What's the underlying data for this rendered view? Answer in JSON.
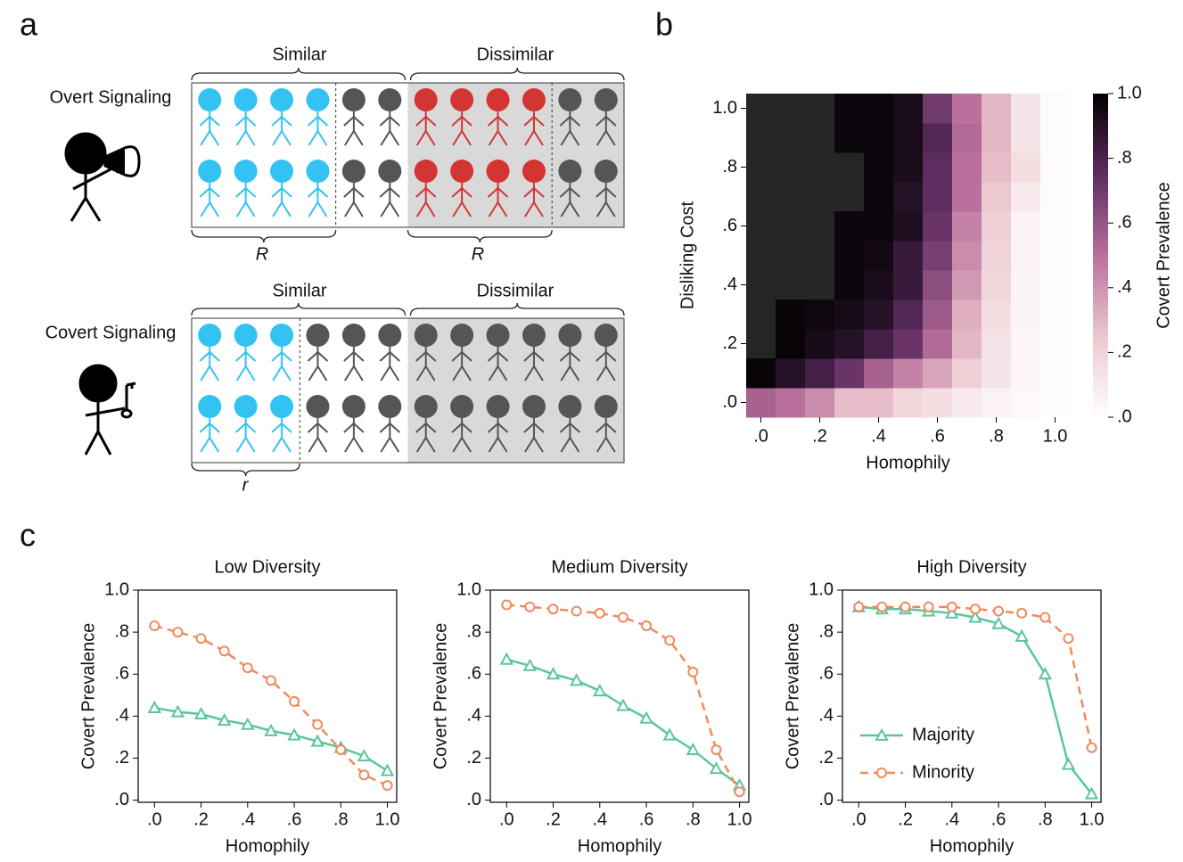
{
  "panel_labels": [
    "a",
    "b",
    "c"
  ],
  "diagram": {
    "overt": {
      "label": "Overt Signaling",
      "similar": "Similar",
      "dissimilar": "Dissimilar",
      "brace_labels": [
        "R",
        "R"
      ]
    },
    "covert": {
      "label": "Covert Signaling",
      "similar": "Similar",
      "dissimilar": "Dissimilar",
      "brace_labels": [
        "r"
      ]
    }
  },
  "chart_data": [
    {
      "type": "heatmap",
      "xlabel": "Homophily",
      "ylabel": "Disliking Cost",
      "x": [
        0,
        0.1,
        0.2,
        0.3,
        0.4,
        0.5,
        0.6,
        0.7,
        0.8,
        0.9,
        1.0
      ],
      "y": [
        0,
        0.1,
        0.2,
        0.3,
        0.4,
        0.5,
        0.6,
        0.7,
        0.8,
        0.9,
        1.0
      ],
      "z": [
        [
          0.55,
          0.5,
          0.42,
          0.28,
          0.28,
          0.18,
          0.15,
          0.1,
          0.06,
          0.03,
          0.01
        ],
        [
          0.98,
          0.9,
          0.82,
          0.72,
          0.55,
          0.45,
          0.35,
          0.22,
          0.12,
          0.04,
          0.01
        ],
        [
          null,
          0.98,
          0.94,
          0.9,
          0.82,
          0.72,
          0.52,
          0.3,
          0.13,
          0.04,
          0.01
        ],
        [
          null,
          0.98,
          0.96,
          0.94,
          0.9,
          0.78,
          0.58,
          0.32,
          0.15,
          0.05,
          0.01
        ],
        [
          null,
          null,
          null,
          0.97,
          0.93,
          0.85,
          0.62,
          0.38,
          0.18,
          0.05,
          0.01
        ],
        [
          null,
          null,
          null,
          0.97,
          0.95,
          0.85,
          0.68,
          0.42,
          0.2,
          0.06,
          0.01
        ],
        [
          null,
          null,
          null,
          0.97,
          0.97,
          0.92,
          0.72,
          0.45,
          0.22,
          0.06,
          0.01
        ],
        [
          null,
          null,
          null,
          null,
          0.97,
          0.9,
          0.75,
          0.5,
          0.25,
          0.1,
          0.02
        ],
        [
          null,
          null,
          null,
          null,
          0.97,
          0.93,
          0.75,
          0.5,
          0.28,
          0.15,
          0.02
        ],
        [
          null,
          null,
          null,
          0.97,
          0.97,
          0.93,
          0.78,
          0.52,
          0.3,
          0.12,
          0.02
        ],
        [
          null,
          null,
          null,
          0.97,
          0.97,
          0.93,
          0.7,
          0.5,
          0.3,
          0.12,
          0.02
        ]
      ],
      "xlim": [
        -0.05,
        1.05
      ],
      "ylim": [
        -0.05,
        1.05
      ],
      "xticks": [
        {
          "value": 0,
          "label": ".0"
        },
        {
          "value": 0.2,
          "label": ".2"
        },
        {
          "value": 0.4,
          "label": ".4"
        },
        {
          "value": 0.6,
          "label": ".6"
        },
        {
          "value": 0.8,
          "label": ".8"
        },
        {
          "value": 1.0,
          "label": "1.0"
        }
      ],
      "yticks": [
        {
          "value": 0,
          "label": ".0"
        },
        {
          "value": 0.2,
          "label": ".2"
        },
        {
          "value": 0.4,
          "label": ".4"
        },
        {
          "value": 0.6,
          "label": ".6"
        },
        {
          "value": 0.8,
          "label": ".8"
        },
        {
          "value": 1.0,
          "label": "1.0"
        }
      ],
      "colormap": [
        "#ffffff",
        "#ecc8cf",
        "#b9709c",
        "#5e2c61",
        "#000000"
      ],
      "colorbar": {
        "label": "Covert Prevalence",
        "lim": [
          0,
          1
        ],
        "ticks": [
          {
            "value": 0,
            "label": ".0"
          },
          {
            "value": 0.2,
            "label": ".2"
          },
          {
            "value": 0.4,
            "label": ".4"
          },
          {
            "value": 0.6,
            "label": ".6"
          },
          {
            "value": 0.8,
            "label": ".8"
          },
          {
            "value": 1.0,
            "label": "1.0"
          }
        ]
      }
    },
    {
      "type": "line",
      "title": "Low Diversity",
      "xlabel": "Homophily",
      "ylabel": "Covert Prevalence",
      "x": [
        0,
        0.1,
        0.2,
        0.3,
        0.4,
        0.5,
        0.6,
        0.7,
        0.8,
        0.9,
        1.0
      ],
      "series": [
        {
          "color": "#5cc59e",
          "marker": "triangle",
          "dashed": false,
          "values": [
            0.44,
            0.42,
            0.41,
            0.38,
            0.36,
            0.33,
            0.31,
            0.28,
            0.25,
            0.21,
            0.14
          ]
        },
        {
          "color": "#f08a5d",
          "marker": "circle",
          "dashed": true,
          "values": [
            0.83,
            0.8,
            0.77,
            0.71,
            0.63,
            0.57,
            0.47,
            0.36,
            0.24,
            0.12,
            0.07
          ]
        }
      ],
      "xlim": [
        -0.07,
        1.04
      ],
      "ylim": [
        -0.01,
        1.0
      ],
      "xticks": [
        {
          "value": 0,
          "label": ".0"
        },
        {
          "value": 0.2,
          "label": ".2"
        },
        {
          "value": 0.4,
          "label": ".4"
        },
        {
          "value": 0.6,
          "label": ".6"
        },
        {
          "value": 0.8,
          "label": ".8"
        },
        {
          "value": 1.0,
          "label": "1.0"
        }
      ],
      "yticks": [
        {
          "value": 0,
          "label": ".0"
        },
        {
          "value": 0.2,
          "label": ".2"
        },
        {
          "value": 0.4,
          "label": ".4"
        },
        {
          "value": 0.6,
          "label": ".6"
        },
        {
          "value": 0.8,
          "label": ".8"
        },
        {
          "value": 1.0,
          "label": "1.0"
        }
      ]
    },
    {
      "type": "line",
      "title": "Medium Diversity",
      "xlabel": "Homophily",
      "ylabel": "Covert Prevalence",
      "x": [
        0,
        0.1,
        0.2,
        0.3,
        0.4,
        0.5,
        0.6,
        0.7,
        0.8,
        0.9,
        1.0
      ],
      "series": [
        {
          "color": "#5cc59e",
          "marker": "triangle",
          "dashed": false,
          "values": [
            0.67,
            0.64,
            0.6,
            0.57,
            0.52,
            0.45,
            0.39,
            0.31,
            0.24,
            0.15,
            0.07
          ]
        },
        {
          "color": "#f08a5d",
          "marker": "circle",
          "dashed": true,
          "values": [
            0.93,
            0.92,
            0.91,
            0.9,
            0.89,
            0.87,
            0.83,
            0.76,
            0.61,
            0.24,
            0.04
          ]
        }
      ],
      "xlim": [
        -0.07,
        1.04
      ],
      "ylim": [
        -0.01,
        1.0
      ],
      "xticks": [
        {
          "value": 0,
          "label": ".0"
        },
        {
          "value": 0.2,
          "label": ".2"
        },
        {
          "value": 0.4,
          "label": ".4"
        },
        {
          "value": 0.6,
          "label": ".6"
        },
        {
          "value": 0.8,
          "label": ".8"
        },
        {
          "value": 1.0,
          "label": "1.0"
        }
      ],
      "yticks": [
        {
          "value": 0,
          "label": ".0"
        },
        {
          "value": 0.2,
          "label": ".2"
        },
        {
          "value": 0.4,
          "label": ".4"
        },
        {
          "value": 0.6,
          "label": ".6"
        },
        {
          "value": 0.8,
          "label": ".8"
        },
        {
          "value": 1.0,
          "label": "1.0"
        }
      ]
    },
    {
      "type": "line",
      "title": "High Diversity",
      "xlabel": "Homophily",
      "ylabel": "Covert Prevalence",
      "x": [
        0,
        0.1,
        0.2,
        0.3,
        0.4,
        0.5,
        0.6,
        0.7,
        0.8,
        0.9,
        1.0
      ],
      "series": [
        {
          "name": "Majority",
          "color": "#5cc59e",
          "marker": "triangle",
          "dashed": false,
          "values": [
            0.92,
            0.91,
            0.91,
            0.9,
            0.89,
            0.87,
            0.84,
            0.78,
            0.6,
            0.17,
            0.03
          ]
        },
        {
          "name": "Minority",
          "color": "#f08a5d",
          "marker": "circle",
          "dashed": true,
          "values": [
            0.92,
            0.92,
            0.92,
            0.92,
            0.92,
            0.91,
            0.9,
            0.89,
            0.87,
            0.77,
            0.25
          ]
        }
      ],
      "xlim": [
        -0.07,
        1.04
      ],
      "ylim": [
        -0.01,
        1.0
      ],
      "xticks": [
        {
          "value": 0,
          "label": ".0"
        },
        {
          "value": 0.2,
          "label": ".2"
        },
        {
          "value": 0.4,
          "label": ".4"
        },
        {
          "value": 0.6,
          "label": ".6"
        },
        {
          "value": 0.8,
          "label": ".8"
        },
        {
          "value": 1.0,
          "label": "1.0"
        }
      ],
      "yticks": [
        {
          "value": 0,
          "label": ".0"
        },
        {
          "value": 0.2,
          "label": ".2"
        },
        {
          "value": 0.4,
          "label": ".4"
        },
        {
          "value": 0.6,
          "label": ".6"
        },
        {
          "value": 0.8,
          "label": ".8"
        },
        {
          "value": 1.0,
          "label": "1.0"
        }
      ],
      "legend": "lower left"
    }
  ]
}
